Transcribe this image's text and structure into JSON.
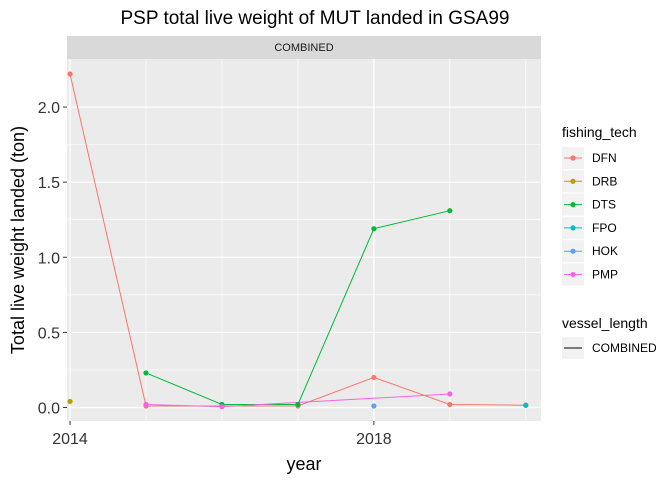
{
  "chart_data": {
    "type": "line",
    "title": "PSP total live weight of MUT landed in GSA99",
    "facet_label": "COMBINED",
    "xlabel": "year",
    "ylabel": "Total live weight landed (ton)",
    "xlim": [
      2013.96,
      2020.2
    ],
    "ylim": [
      -0.09,
      2.32
    ],
    "x_ticks": [
      {
        "value": 2014,
        "label": "2014"
      },
      {
        "value": 2018,
        "label": "2018"
      }
    ],
    "y_ticks": [
      {
        "value": 0.0,
        "label": "0.0"
      },
      {
        "value": 0.5,
        "label": "0.5"
      },
      {
        "value": 1.0,
        "label": "1.0"
      },
      {
        "value": 1.5,
        "label": "1.5"
      },
      {
        "value": 2.0,
        "label": "2.0"
      }
    ],
    "grid": true,
    "legend_position": "right",
    "legend": {
      "color_title": "fishing_tech",
      "linetype_title": "vessel_length",
      "linetype_entries": [
        "COMBINED"
      ]
    },
    "series": [
      {
        "name": "DFN",
        "color": "#F8766D",
        "points": [
          [
            2014,
            2.22
          ],
          [
            2015,
            0.01
          ],
          [
            2016,
            0.01
          ],
          [
            2017,
            0.01
          ],
          [
            2018,
            0.2
          ],
          [
            2019,
            0.02
          ],
          [
            2020,
            0.015
          ]
        ]
      },
      {
        "name": "DRB",
        "color": "#B79F00",
        "points": [
          [
            2014,
            0.04
          ]
        ]
      },
      {
        "name": "DTS",
        "color": "#00BA38",
        "points": [
          [
            2015,
            0.23
          ],
          [
            2016,
            0.02
          ],
          [
            2017,
            0.02
          ],
          [
            2018,
            1.19
          ],
          [
            2019,
            1.31
          ]
        ]
      },
      {
        "name": "FPO",
        "color": "#00BFC4",
        "points": [
          [
            2020,
            0.015
          ]
        ]
      },
      {
        "name": "HOK",
        "color": "#619CFF",
        "points": [
          [
            2018,
            0.01
          ]
        ]
      },
      {
        "name": "PMP",
        "color": "#F564E3",
        "points": [
          [
            2015,
            0.02
          ],
          [
            2016,
            0.005
          ],
          [
            2019,
            0.09
          ]
        ]
      }
    ]
  }
}
